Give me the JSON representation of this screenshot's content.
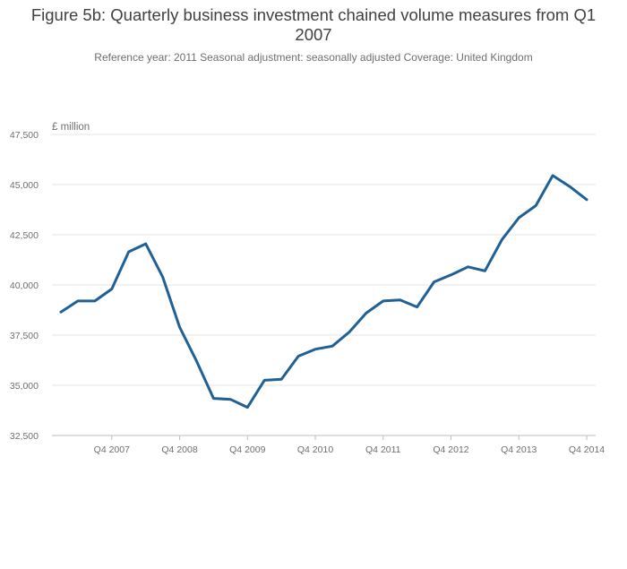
{
  "title": "Figure 5b: Quarterly business investment chained volume measures from Q1 2007",
  "subtitle": "Reference year: 2011 Seasonal adjustment: seasonally adjusted Coverage: United Kingdom",
  "chart_data": {
    "type": "line",
    "title": "Figure 5b: Quarterly business investment chained volume measures from Q1 2007",
    "subtitle": "Reference year: 2011 Seasonal adjustment: seasonally adjusted Coverage: United Kingdom",
    "ylabel": "£ million",
    "xlabel": "",
    "ylim": [
      32500,
      47500
    ],
    "yticks": [
      32500,
      35000,
      37500,
      40000,
      42500,
      45000,
      47500
    ],
    "ytick_labels": [
      "32,500",
      "35,000",
      "37,500",
      "40,000",
      "42,500",
      "45,000",
      "47,500"
    ],
    "xtick_labels": [
      "Q4 2007",
      "Q4 2008",
      "Q4 2009",
      "Q4 2010",
      "Q4 2011",
      "Q4 2012",
      "Q4 2013",
      "Q4 2014"
    ],
    "grid": true,
    "color": "#206095",
    "x": [
      "Q1 2007",
      "Q2 2007",
      "Q3 2007",
      "Q4 2007",
      "Q1 2008",
      "Q2 2008",
      "Q3 2008",
      "Q4 2008",
      "Q1 2009",
      "Q2 2009",
      "Q3 2009",
      "Q4 2009",
      "Q1 2010",
      "Q2 2010",
      "Q3 2010",
      "Q4 2010",
      "Q1 2011",
      "Q2 2011",
      "Q3 2011",
      "Q4 2011",
      "Q1 2012",
      "Q2 2012",
      "Q3 2012",
      "Q4 2012",
      "Q1 2013",
      "Q2 2013",
      "Q3 2013",
      "Q4 2013",
      "Q1 2014",
      "Q2 2014",
      "Q3 2014",
      "Q4 2014"
    ],
    "values": [
      38650,
      39200,
      39200,
      39800,
      41650,
      42050,
      40400,
      37900,
      36200,
      34350,
      34300,
      33900,
      35250,
      35300,
      36450,
      36800,
      36950,
      37650,
      38600,
      39200,
      39250,
      38900,
      40150,
      40500,
      40900,
      40700,
      42250,
      43350,
      43950,
      45450,
      44900,
      44250
    ]
  }
}
